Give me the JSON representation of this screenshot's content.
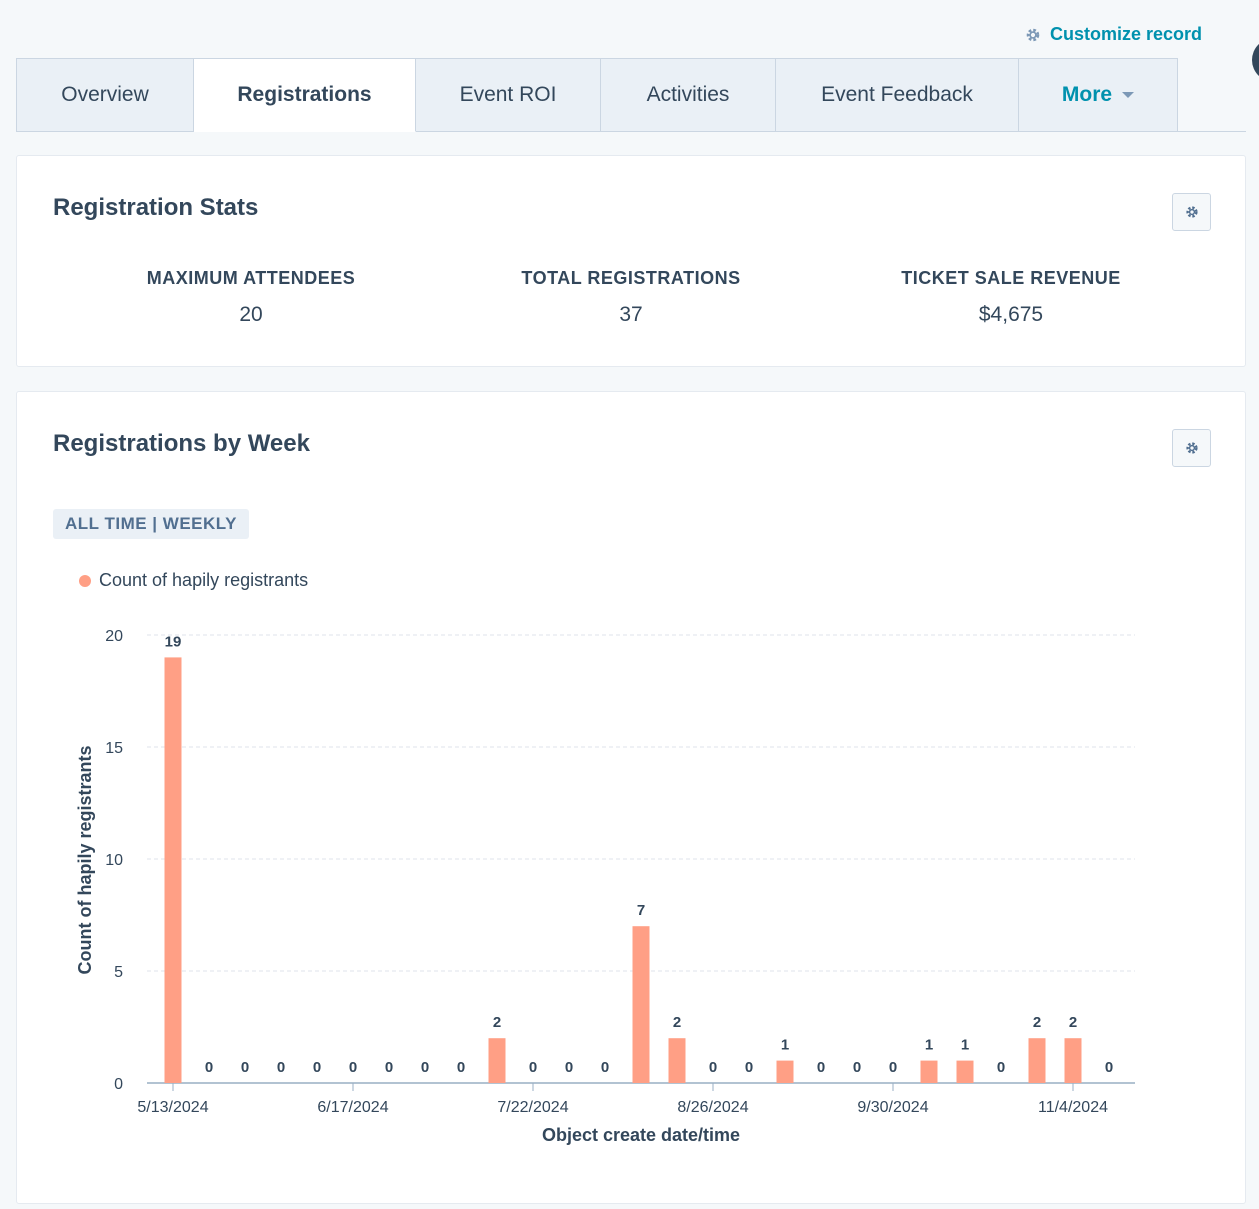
{
  "header": {
    "customize_label": "Customize record",
    "customize_icon": "gear-icon"
  },
  "tabs": [
    {
      "label": "Overview",
      "active": false
    },
    {
      "label": "Registrations",
      "active": true
    },
    {
      "label": "Event ROI",
      "active": false
    },
    {
      "label": "Activities",
      "active": false
    },
    {
      "label": "Event Feedback",
      "active": false
    },
    {
      "label": "More",
      "active": false
    }
  ],
  "stats_card": {
    "title": "Registration Stats",
    "settings_icon": "gear-icon",
    "stats": [
      {
        "label": "MAXIMUM ATTENDEES",
        "value": "20"
      },
      {
        "label": "TOTAL REGISTRATIONS",
        "value": "37"
      },
      {
        "label": "TICKET SALE REVENUE",
        "value": "$4,675"
      }
    ]
  },
  "chart_card": {
    "title": "Registrations by Week",
    "settings_icon": "gear-icon",
    "range_label": "ALL TIME | WEEKLY"
  },
  "colors": {
    "bar": "#ff9f85",
    "accent": "#0091ae",
    "text": "#33475b"
  },
  "chart_data": {
    "type": "bar",
    "xlabel": "Object create date/time",
    "ylabel": "Count of hapily registrants",
    "ylim": [
      0,
      20
    ],
    "yticks": [
      0,
      5,
      10,
      15,
      20
    ],
    "grid": true,
    "legend_position": "top-left",
    "x_tick_labels": [
      {
        "index": 0,
        "label": "5/13/2024"
      },
      {
        "index": 5,
        "label": "6/17/2024"
      },
      {
        "index": 10,
        "label": "7/22/2024"
      },
      {
        "index": 15,
        "label": "8/26/2024"
      },
      {
        "index": 20,
        "label": "9/30/2024"
      },
      {
        "index": 25,
        "label": "11/4/2024"
      }
    ],
    "series": [
      {
        "name": "Count of hapily registrants",
        "values": [
          19,
          0,
          0,
          0,
          0,
          0,
          0,
          0,
          0,
          2,
          0,
          0,
          0,
          7,
          2,
          0,
          0,
          1,
          0,
          0,
          0,
          1,
          1,
          0,
          2,
          2,
          0
        ]
      }
    ]
  }
}
